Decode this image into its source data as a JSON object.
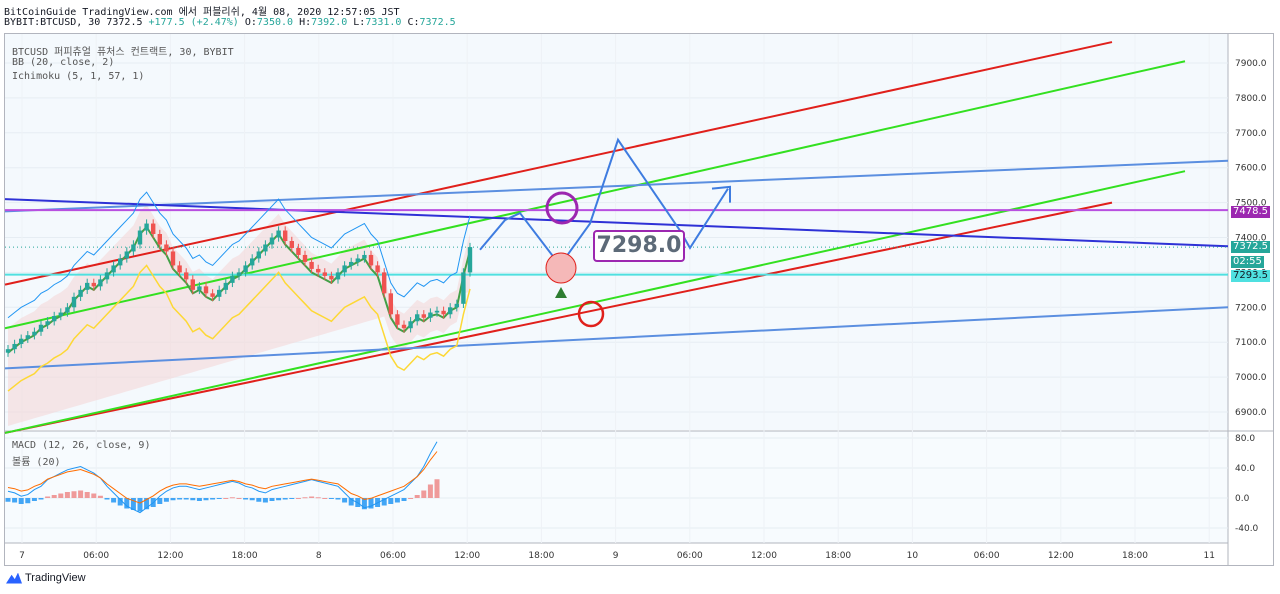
{
  "header": {
    "line1": "BitCoinGuide TradingView.com 에서 퍼블리쉬, 4월 08, 2020 12:57:05 JST",
    "symbol": "BYBIT:BTCUSD, 30",
    "last": "7372.5",
    "change": "+177.5 (+2.47%)",
    "o_label": "O:",
    "o_val": "7350.0",
    "h_label": "H:",
    "h_val": "7392.0",
    "l_label": "L:",
    "l_val": "7331.0",
    "c_label": "C:",
    "c_val": "7372.5"
  },
  "legend": {
    "title": "BTCUSD 퍼피츄얼 퓨처스 컨트랙트, 30, BYBIT",
    "bb": "BB (20, close, 2)",
    "ichimoku": "Ichimoku (5, 1, 57, 1)",
    "macd": "MACD (12, 26, close, 9)",
    "volume": "볼륨 (20)"
  },
  "price_tags": {
    "purple": "7478.5",
    "last": "7372.5",
    "countdown": "02:55",
    "cyan": "7293.5"
  },
  "callout": "7298.0",
  "branding": "TradingView",
  "colors": {
    "up": "#26a69a",
    "down": "#ef5350",
    "red_channel": "#e0201b",
    "green_channel": "#33e020",
    "blue_channel": "#5b8fe0",
    "dark_blue": "#2e31d6",
    "purple": "#b84fe0",
    "cyan": "#4fe0e0"
  },
  "chart_data": [
    {
      "type": "candlestick",
      "title": "BTCUSD 퍼피츄얼 퓨처스 컨트랙트, 30, BYBIT",
      "ylim": [
        6850,
        7980
      ],
      "y_ticks": [
        "7900.0",
        "7800.0",
        "7700.0",
        "7600.0",
        "7500.0",
        "7400.0",
        "7300.0",
        "7200.0",
        "7100.0",
        "7000.0",
        "6900.0"
      ],
      "x_ticks": [
        "7",
        "06:00",
        "12:00",
        "18:00",
        "8",
        "06:00",
        "12:00",
        "18:00",
        "9",
        "06:00",
        "12:00",
        "18:00",
        "10",
        "06:00",
        "12:00",
        "18:00",
        "11"
      ],
      "closes": [
        7080,
        7095,
        7110,
        7120,
        7130,
        7150,
        7160,
        7175,
        7185,
        7200,
        7230,
        7250,
        7270,
        7260,
        7280,
        7300,
        7320,
        7340,
        7360,
        7380,
        7420,
        7440,
        7410,
        7380,
        7360,
        7320,
        7300,
        7280,
        7250,
        7260,
        7240,
        7230,
        7250,
        7270,
        7290,
        7300,
        7320,
        7340,
        7360,
        7380,
        7400,
        7420,
        7390,
        7370,
        7350,
        7330,
        7310,
        7300,
        7290,
        7280,
        7300,
        7320,
        7330,
        7340,
        7350,
        7320,
        7300,
        7240,
        7180,
        7150,
        7140,
        7160,
        7180,
        7170,
        7185,
        7190,
        7180,
        7200,
        7210,
        7300,
        7372.5
      ],
      "horizontal_levels": [
        7478.5,
        7372.5,
        7293.5
      ],
      "annotation": "7298.0"
    },
    {
      "type": "bar",
      "title": "MACD (12, 26, close, 9)",
      "ylim": [
        -60,
        90
      ],
      "y_ticks": [
        "80.0",
        "40.0",
        "0.0",
        "-40.0"
      ],
      "histogram": [
        -5,
        -6,
        -8,
        -7,
        -4,
        -2,
        2,
        4,
        6,
        8,
        9,
        10,
        8,
        6,
        3,
        -2,
        -6,
        -10,
        -14,
        -16,
        -18,
        -15,
        -12,
        -8,
        -5,
        -3,
        -2,
        -2,
        -3,
        -4,
        -3,
        -2,
        -1,
        0,
        1,
        0,
        -2,
        -3,
        -5,
        -6,
        -4,
        -3,
        -2,
        -1,
        0,
        1,
        2,
        1,
        0,
        -1,
        -2,
        -6,
        -10,
        -12,
        -15,
        -14,
        -12,
        -10,
        -8,
        -6,
        -4,
        0,
        4,
        10,
        18,
        25
      ]
    }
  ]
}
